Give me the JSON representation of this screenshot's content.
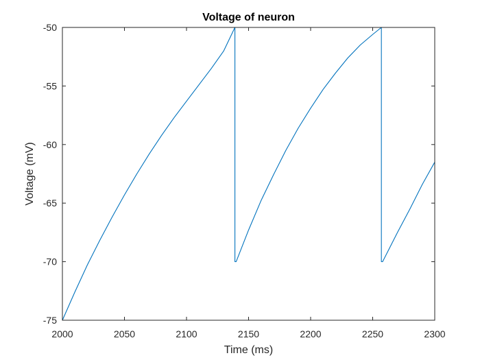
{
  "chart_data": {
    "type": "line",
    "title": "Voltage of neuron",
    "xlabel": "Time (ms)",
    "ylabel": "Voltage (mV)",
    "xlim": [
      2000,
      2300
    ],
    "ylim": [
      -75,
      -50
    ],
    "xticks": [
      2000,
      2050,
      2100,
      2150,
      2200,
      2250,
      2300
    ],
    "yticks": [
      -75,
      -70,
      -65,
      -60,
      -55,
      -50
    ],
    "grid": false,
    "legend": "none",
    "series": [
      {
        "color": "#0072BD",
        "x": [
          2000,
          2010,
          2020,
          2030,
          2040,
          2050,
          2060,
          2070,
          2080,
          2090,
          2100,
          2110,
          2120,
          2130,
          2139,
          2139,
          2140,
          2150,
          2160,
          2170,
          2180,
          2190,
          2200,
          2210,
          2220,
          2230,
          2240,
          2250,
          2257,
          2257,
          2258,
          2270,
          2280,
          2290,
          2300
        ],
        "y": [
          -75,
          -72.6,
          -70.3,
          -68.2,
          -66.2,
          -64.3,
          -62.5,
          -60.8,
          -59.2,
          -57.7,
          -56.3,
          -54.9,
          -53.5,
          -52.0,
          -50,
          -70,
          -70,
          -67.3,
          -64.8,
          -62.6,
          -60.5,
          -58.6,
          -56.9,
          -55.3,
          -53.9,
          -52.6,
          -51.5,
          -50.6,
          -50,
          -70,
          -70,
          -67.5,
          -65.5,
          -63.4,
          -61.5
        ]
      }
    ]
  }
}
